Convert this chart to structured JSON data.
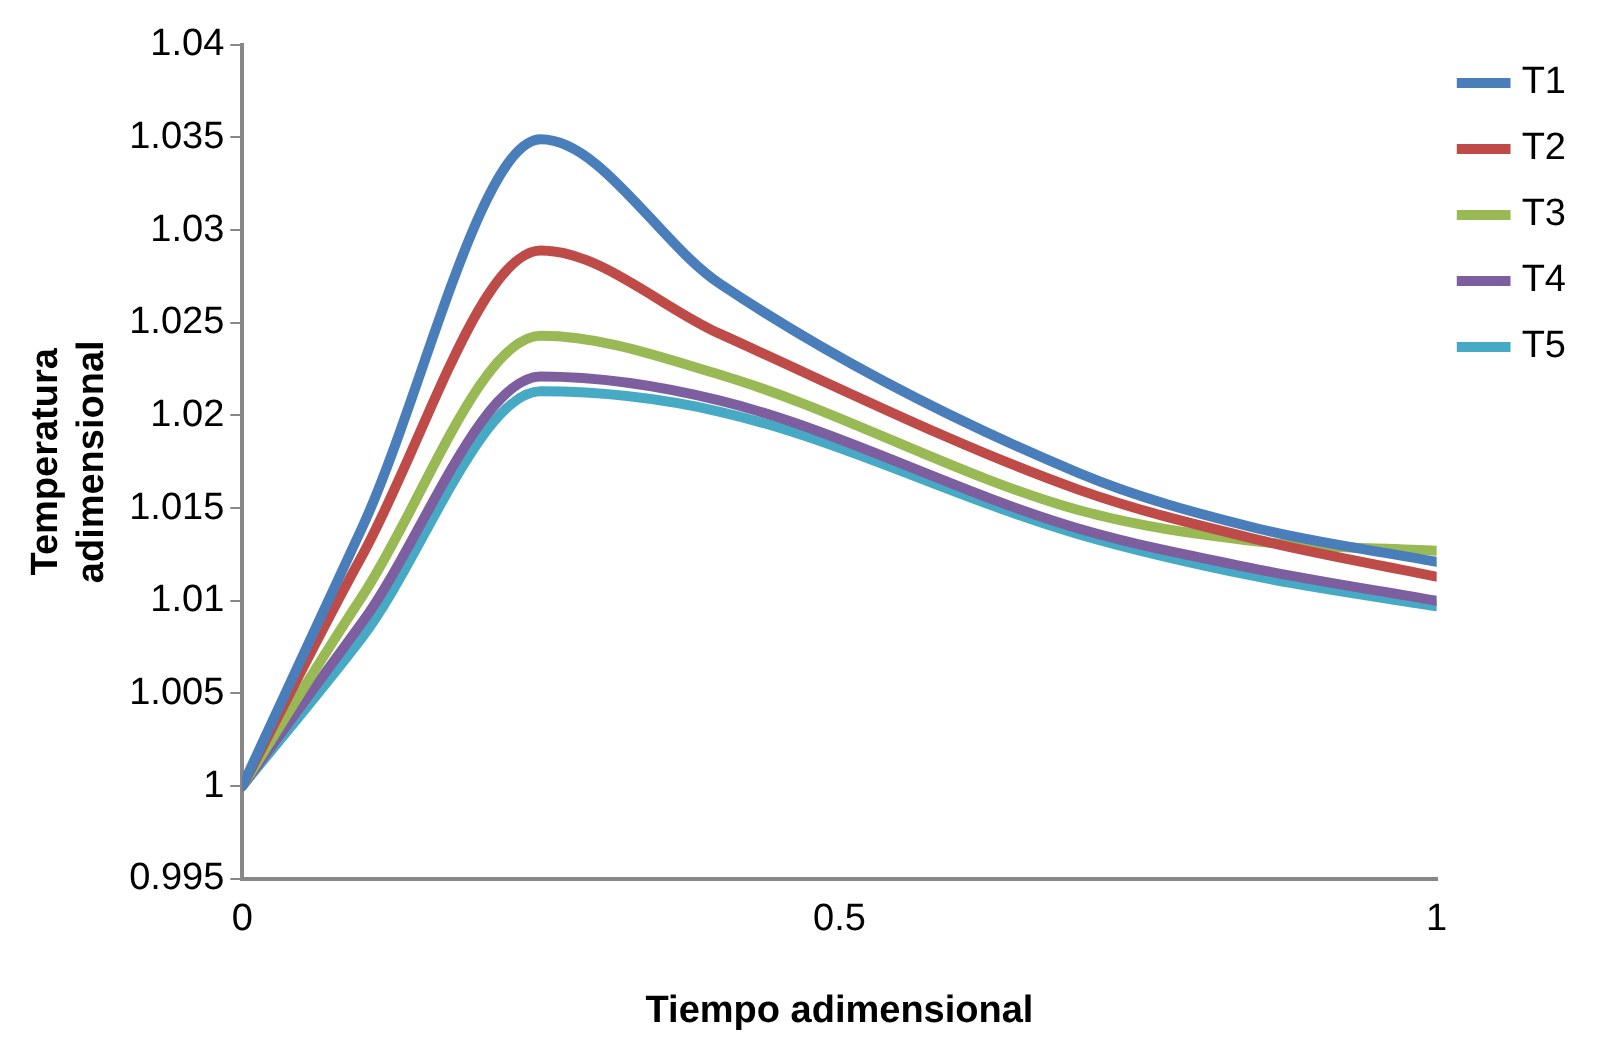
{
  "chart_data": {
    "type": "line",
    "xlabel": "Tiempo adimensional",
    "ylabel": "Temperatura adimensional",
    "x": [
      0,
      0.1,
      0.25,
      0.4,
      0.7,
      0.85,
      1
    ],
    "series": [
      {
        "name": "T1",
        "color": "#4a7ebb",
        "values": [
          1.0,
          1.0139,
          1.0349,
          1.0271,
          1.0169,
          1.0139,
          1.0121
        ]
      },
      {
        "name": "T2",
        "color": "#be4b48",
        "values": [
          1.0,
          1.0124,
          1.0289,
          1.0244,
          1.016,
          1.0133,
          1.0113
        ]
      },
      {
        "name": "T3",
        "color": "#98b954",
        "values": [
          1.0,
          1.0102,
          1.0243,
          1.0222,
          1.0149,
          1.0132,
          1.0127
        ]
      },
      {
        "name": "T4",
        "color": "#7d5fa0",
        "values": [
          1.0,
          1.0088,
          1.0221,
          1.0208,
          1.0139,
          1.0117,
          1.01
        ]
      },
      {
        "name": "T5",
        "color": "#46aac5",
        "values": [
          1.0,
          1.008,
          1.0213,
          1.0202,
          1.0136,
          1.0113,
          1.0097
        ]
      }
    ],
    "xlim": [
      0,
      1
    ],
    "xticks": [
      0,
      0.5,
      1
    ],
    "ylim": [
      0.995,
      1.04
    ],
    "yticks": [
      0.995,
      1,
      1.005,
      1.01,
      1.015,
      1.02,
      1.025,
      1.03,
      1.035,
      1.04
    ],
    "grid": false,
    "legend": "right",
    "marker": "none",
    "line_style": "solid"
  }
}
